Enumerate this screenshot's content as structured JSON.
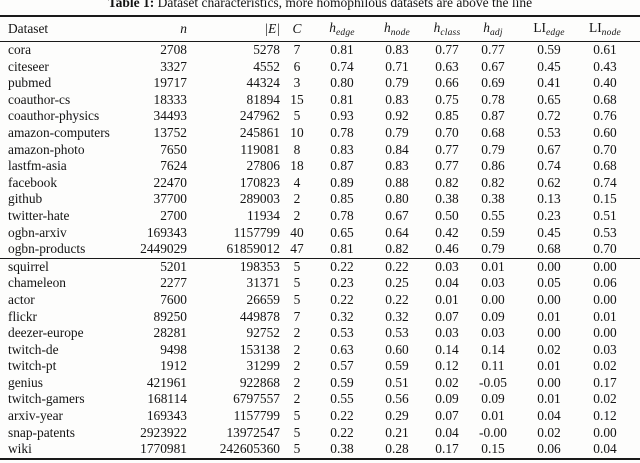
{
  "caption": {
    "label": "Table 1:",
    "text": " Dataset characteristics, more homophilous datasets are above the line"
  },
  "table": {
    "headers": [
      {
        "base": "Dataset",
        "sub": "",
        "italic": false
      },
      {
        "base": "n",
        "sub": "",
        "italic": true
      },
      {
        "base": "|E|",
        "sub": "",
        "italic": true
      },
      {
        "base": "C",
        "sub": "",
        "italic": true
      },
      {
        "base": "h",
        "sub": "edge",
        "italic": true
      },
      {
        "base": "h",
        "sub": "node",
        "italic": true
      },
      {
        "base": "h",
        "sub": "class",
        "italic": true
      },
      {
        "base": "h",
        "sub": "adj",
        "italic": true
      },
      {
        "base": "LI",
        "sub": "edge",
        "italic": false
      },
      {
        "base": "LI",
        "sub": "node",
        "italic": false
      }
    ],
    "homophilous_rows": [
      [
        "cora",
        "2708",
        "5278",
        "7",
        "0.81",
        "0.83",
        "0.77",
        "0.77",
        "0.59",
        "0.61"
      ],
      [
        "citeseer",
        "3327",
        "4552",
        "6",
        "0.74",
        "0.71",
        "0.63",
        "0.67",
        "0.45",
        "0.43"
      ],
      [
        "pubmed",
        "19717",
        "44324",
        "3",
        "0.80",
        "0.79",
        "0.66",
        "0.69",
        "0.41",
        "0.40"
      ],
      [
        "coauthor-cs",
        "18333",
        "81894",
        "15",
        "0.81",
        "0.83",
        "0.75",
        "0.78",
        "0.65",
        "0.68"
      ],
      [
        "coauthor-physics",
        "34493",
        "247962",
        "5",
        "0.93",
        "0.92",
        "0.85",
        "0.87",
        "0.72",
        "0.76"
      ],
      [
        "amazon-computers",
        "13752",
        "245861",
        "10",
        "0.78",
        "0.79",
        "0.70",
        "0.68",
        "0.53",
        "0.60"
      ],
      [
        "amazon-photo",
        "7650",
        "119081",
        "8",
        "0.83",
        "0.84",
        "0.77",
        "0.79",
        "0.67",
        "0.70"
      ],
      [
        "lastfm-asia",
        "7624",
        "27806",
        "18",
        "0.87",
        "0.83",
        "0.77",
        "0.86",
        "0.74",
        "0.68"
      ],
      [
        "facebook",
        "22470",
        "170823",
        "4",
        "0.89",
        "0.88",
        "0.82",
        "0.82",
        "0.62",
        "0.74"
      ],
      [
        "github",
        "37700",
        "289003",
        "2",
        "0.85",
        "0.80",
        "0.38",
        "0.38",
        "0.13",
        "0.15"
      ],
      [
        "twitter-hate",
        "2700",
        "11934",
        "2",
        "0.78",
        "0.67",
        "0.50",
        "0.55",
        "0.23",
        "0.51"
      ],
      [
        "ogbn-arxiv",
        "169343",
        "1157799",
        "40",
        "0.65",
        "0.64",
        "0.42",
        "0.59",
        "0.45",
        "0.53"
      ],
      [
        "ogbn-products",
        "2449029",
        "61859012",
        "47",
        "0.81",
        "0.82",
        "0.46",
        "0.79",
        "0.68",
        "0.70"
      ]
    ],
    "heterophilous_rows": [
      [
        "squirrel",
        "5201",
        "198353",
        "5",
        "0.22",
        "0.22",
        "0.03",
        "0.01",
        "0.00",
        "0.00"
      ],
      [
        "chameleon",
        "2277",
        "31371",
        "5",
        "0.23",
        "0.25",
        "0.04",
        "0.03",
        "0.05",
        "0.06"
      ],
      [
        "actor",
        "7600",
        "26659",
        "5",
        "0.22",
        "0.22",
        "0.01",
        "0.00",
        "0.00",
        "0.00"
      ],
      [
        "flickr",
        "89250",
        "449878",
        "7",
        "0.32",
        "0.32",
        "0.07",
        "0.09",
        "0.01",
        "0.01"
      ],
      [
        "deezer-europe",
        "28281",
        "92752",
        "2",
        "0.53",
        "0.53",
        "0.03",
        "0.03",
        "0.00",
        "0.00"
      ],
      [
        "twitch-de",
        "9498",
        "153138",
        "2",
        "0.63",
        "0.60",
        "0.14",
        "0.14",
        "0.02",
        "0.03"
      ],
      [
        "twitch-pt",
        "1912",
        "31299",
        "2",
        "0.57",
        "0.59",
        "0.12",
        "0.11",
        "0.01",
        "0.02"
      ],
      [
        "genius",
        "421961",
        "922868",
        "2",
        "0.59",
        "0.51",
        "0.02",
        "-0.05",
        "0.00",
        "0.17"
      ],
      [
        "twitch-gamers",
        "168114",
        "6797557",
        "2",
        "0.55",
        "0.56",
        "0.09",
        "0.09",
        "0.01",
        "0.02"
      ],
      [
        "arxiv-year",
        "169343",
        "1157799",
        "5",
        "0.22",
        "0.29",
        "0.07",
        "0.01",
        "0.04",
        "0.12"
      ],
      [
        "snap-patents",
        "2923922",
        "13972547",
        "5",
        "0.22",
        "0.21",
        "0.04",
        "-0.00",
        "0.02",
        "0.00"
      ],
      [
        "wiki",
        "1770981",
        "242605360",
        "5",
        "0.38",
        "0.28",
        "0.17",
        "0.15",
        "0.06",
        "0.04"
      ]
    ]
  }
}
